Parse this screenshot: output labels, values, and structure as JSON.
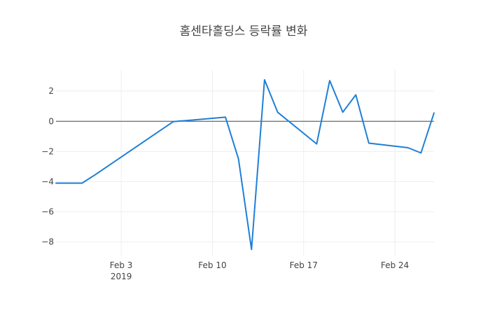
{
  "chart_data": {
    "type": "line",
    "title": "홈센타홀딩스 등락률 변화",
    "xlabel": "",
    "ylabel": "",
    "x_ticks": [
      {
        "date": "2019-02-03",
        "label": "Feb 3",
        "sublabel": "2019"
      },
      {
        "date": "2019-02-10",
        "label": "Feb 10",
        "sublabel": ""
      },
      {
        "date": "2019-02-17",
        "label": "Feb 17",
        "sublabel": ""
      },
      {
        "date": "2019-02-24",
        "label": "Feb 24",
        "sublabel": ""
      }
    ],
    "y_ticks": [
      2,
      0,
      -2,
      -4,
      -6,
      -8
    ],
    "y_tick_labels": [
      "2",
      "0",
      "−2",
      "−4",
      "−6",
      "−8"
    ],
    "xlim": [
      "2019-01-29",
      "2019-02-27"
    ],
    "ylim": [
      -8.9,
      3.4
    ],
    "grid": true,
    "zero_line": true,
    "series": [
      {
        "color": "#1f7fd6",
        "x": [
          "2019-01-29",
          "2019-01-30",
          "2019-01-31",
          "2019-02-01",
          "2019-02-07",
          "2019-02-08",
          "2019-02-11",
          "2019-02-12",
          "2019-02-13",
          "2019-02-14",
          "2019-02-15",
          "2019-02-18",
          "2019-02-19",
          "2019-02-20",
          "2019-02-21",
          "2019-02-22",
          "2019-02-25",
          "2019-02-26",
          "2019-02-27"
        ],
        "y": [
          -4.1,
          -4.1,
          -4.1,
          -3.55,
          -0.02,
          0.05,
          0.27,
          -2.5,
          -8.5,
          2.75,
          0.6,
          -1.5,
          2.7,
          0.6,
          1.75,
          -1.45,
          -1.75,
          -2.1,
          0.55
        ]
      }
    ]
  }
}
